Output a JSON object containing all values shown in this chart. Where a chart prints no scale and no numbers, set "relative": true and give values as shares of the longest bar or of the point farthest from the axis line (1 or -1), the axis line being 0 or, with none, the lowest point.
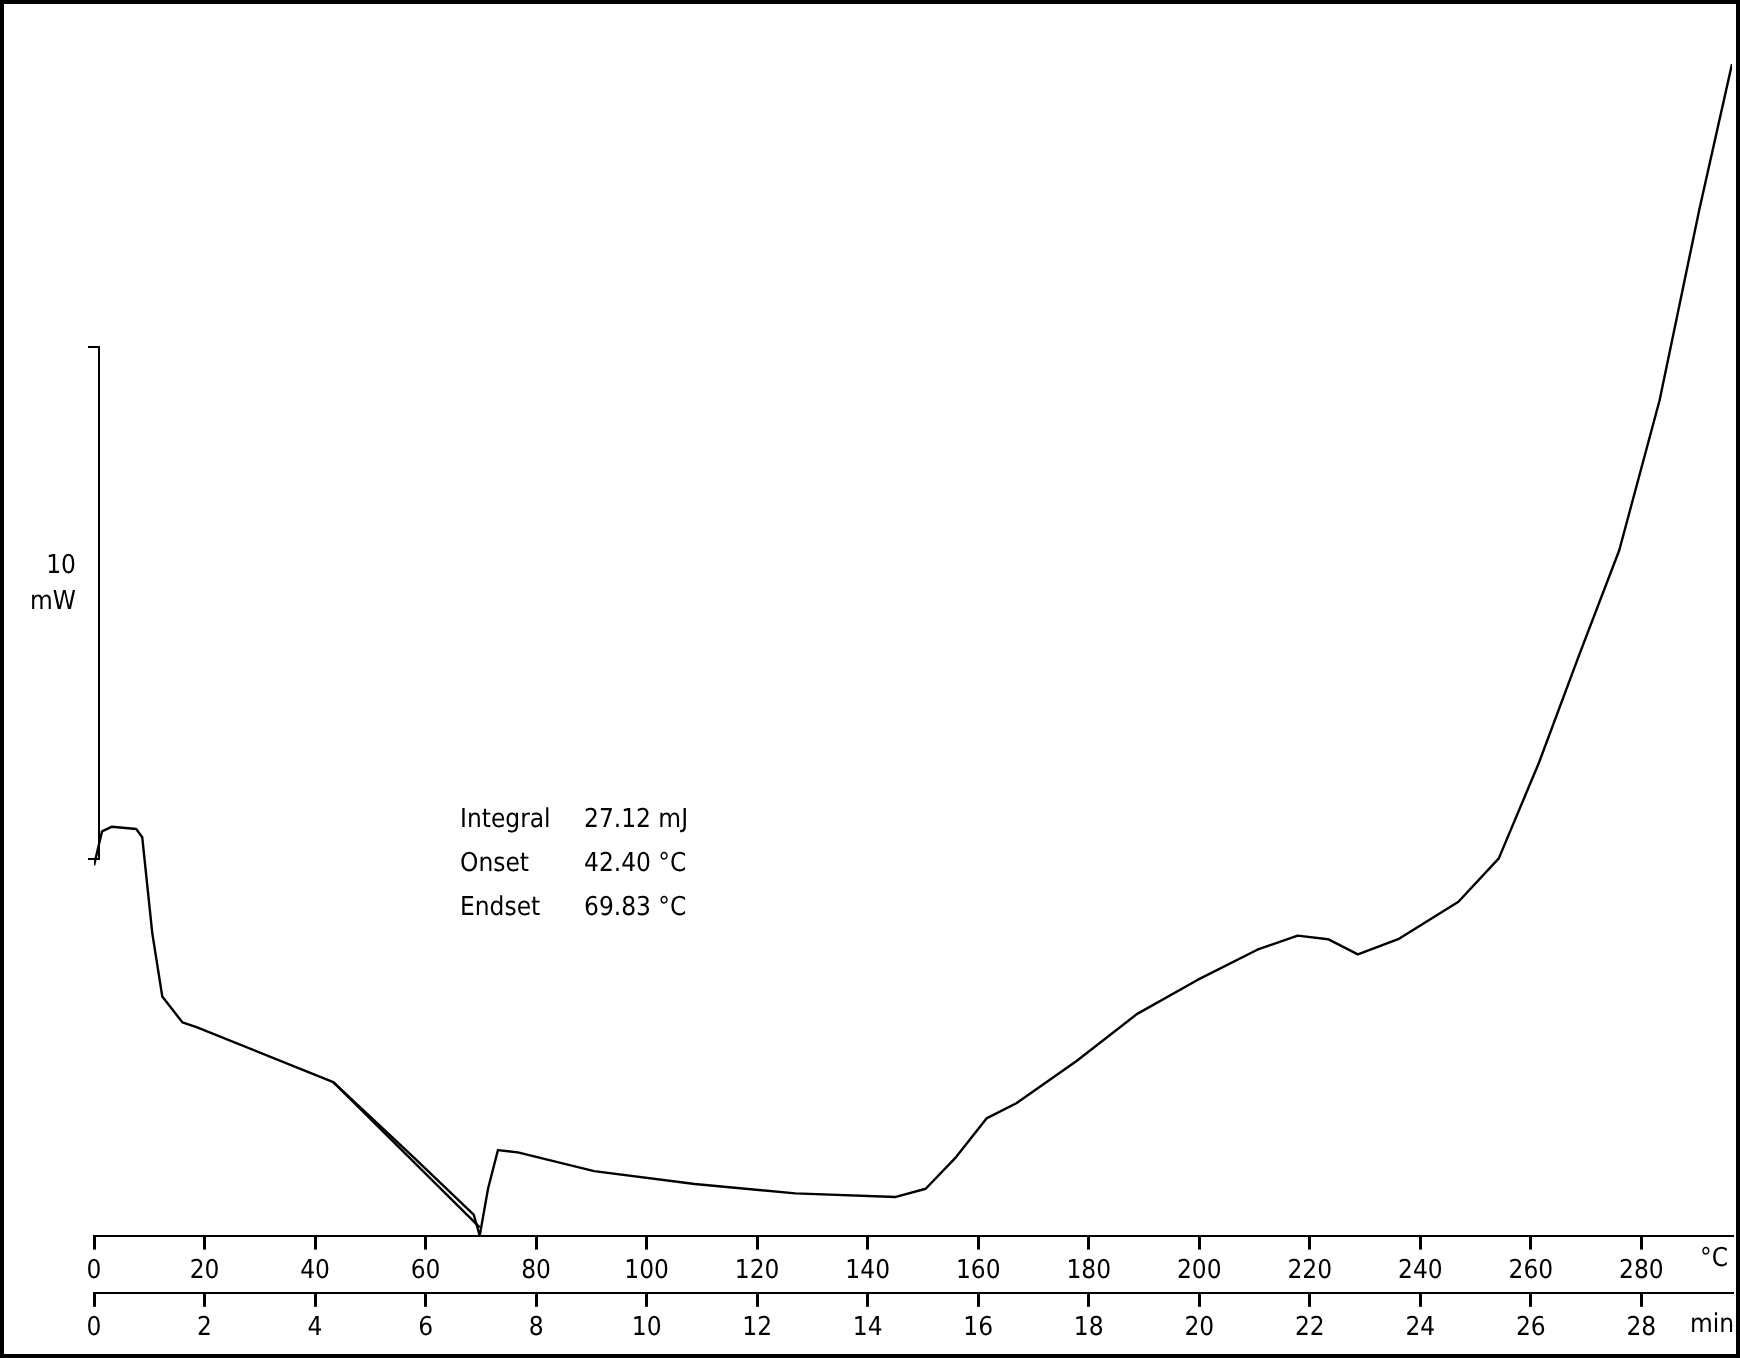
{
  "chart_data": {
    "type": "line",
    "relative": true,
    "xlabel": "°C",
    "x2label": "min",
    "x": [
      0,
      1.45,
      3.27,
      7.64,
      8.73,
      10.55,
      12.36,
      16.0,
      18.55,
      43.3,
      57.8,
      68.7,
      69.8,
      71.3,
      73.1,
      76.7,
      90.5,
      108.7,
      126.9,
      145.1,
      150.5,
      156.0,
      161.5,
      166.9,
      177.8,
      188.7,
      199.6,
      210.5,
      217.8,
      223.3,
      228.7,
      236.0,
      246.9,
      254.2,
      261.5,
      268.7,
      276.0,
      283.3,
      290.5,
      296.4
    ],
    "series": [
      {
        "color": "#000000",
        "values": [
          0.316,
          0.345,
          0.349,
          0.347,
          0.34,
          0.258,
          0.204,
          0.182,
          0.178,
          0.131,
          0.067,
          0.018,
          0,
          0.04,
          0.073,
          0.071,
          0.055,
          0.044,
          0.036,
          0.033,
          0.04,
          0.067,
          0.1,
          0.113,
          0.149,
          0.189,
          0.218,
          0.244,
          0.256,
          0.253,
          0.24,
          0.253,
          0.285,
          0.322,
          0.404,
          0.495,
          0.585,
          0.713,
          0.876,
          1
        ]
      },
      {
        "type": "line",
        "color": "#000000",
        "x": [
          43.3,
          69.8
        ],
        "values": [
          0.131,
          0.007
        ]
      }
    ],
    "xlim": [
      0,
      296.4
    ],
    "xticks": [
      0,
      20,
      40,
      60,
      80,
      100,
      120,
      140,
      160,
      180,
      200,
      220,
      240,
      260,
      280
    ],
    "x2lim": [
      0,
      29.64
    ],
    "x2ticks": [
      0,
      2,
      4,
      6,
      8,
      10,
      12,
      14,
      16,
      18,
      20,
      22,
      24,
      26,
      28
    ],
    "grid": false,
    "legend": false,
    "marker": "none",
    "line_style": "solid",
    "annotations": [
      "10 mW",
      "Integral 27.12 mJ",
      "Onset 42.40 °C",
      "Endset 69.83 °C"
    ]
  }
}
